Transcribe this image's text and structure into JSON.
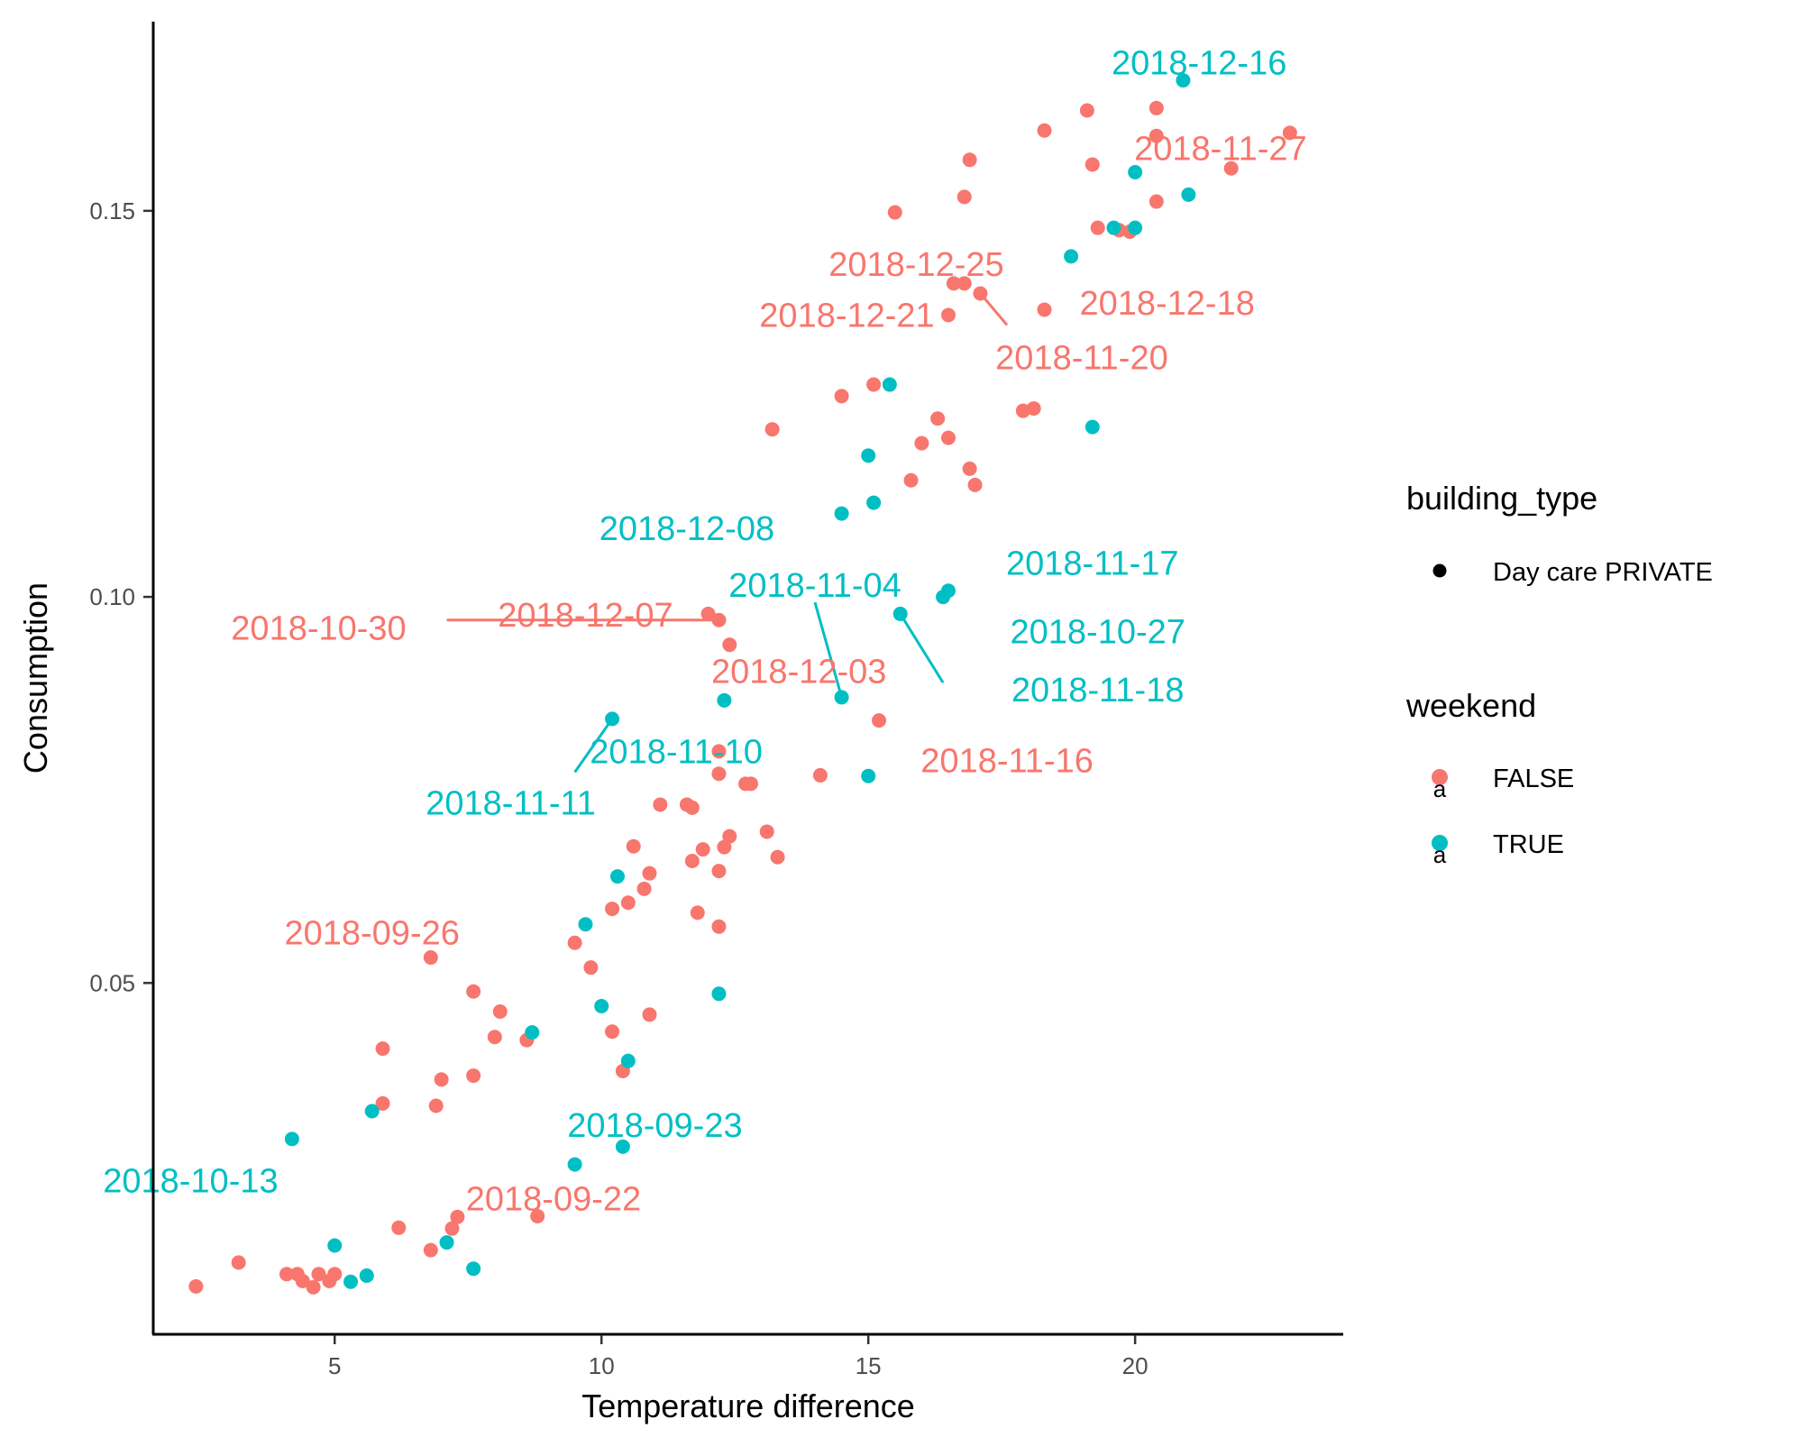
{
  "chart_data": {
    "type": "scatter",
    "title": "",
    "xlabel": "Temperature difference",
    "ylabel": "Consumption",
    "xlim": [
      1.6,
      23.9
    ],
    "ylim": [
      0.0045,
      0.1745
    ],
    "x_ticks": [
      5,
      10,
      15,
      20
    ],
    "y_ticks": [
      0.05,
      0.1,
      0.15
    ],
    "x_tick_labels": [
      "5",
      "10",
      "15",
      "20"
    ],
    "y_tick_labels": [
      "0.05",
      "0.10",
      "0.15"
    ],
    "grid": false,
    "legend_position": "right",
    "colors": {
      "FALSE": "#F8766D",
      "TRUE": "#00BFC4"
    },
    "legend": {
      "shape_title": "building_type",
      "shape_items": [
        "Day care PRIVATE"
      ],
      "color_title": "weekend",
      "color_items": [
        "FALSE",
        "TRUE"
      ],
      "key_glyph": "a"
    },
    "series": [
      {
        "weekend": "FALSE",
        "points": [
          [
            2.4,
            0.0107
          ],
          [
            3.2,
            0.0138
          ],
          [
            4.1,
            0.0123
          ],
          [
            4.3,
            0.0123
          ],
          [
            4.4,
            0.0114
          ],
          [
            4.6,
            0.0106
          ],
          [
            4.7,
            0.0123
          ],
          [
            4.9,
            0.0114
          ],
          [
            5.0,
            0.0123
          ],
          [
            6.2,
            0.0183
          ],
          [
            6.8,
            0.0154
          ],
          [
            7.2,
            0.0182
          ],
          [
            7.3,
            0.0197
          ],
          [
            8.8,
            0.0198
          ],
          [
            5.9,
            0.0415
          ],
          [
            5.9,
            0.0344
          ],
          [
            6.9,
            0.0341
          ],
          [
            7.0,
            0.0375
          ],
          [
            7.6,
            0.038
          ],
          [
            7.6,
            0.0489
          ],
          [
            8.0,
            0.043
          ],
          [
            8.1,
            0.0463
          ],
          [
            8.6,
            0.0426
          ],
          [
            6.8,
            0.0533
          ],
          [
            9.5,
            0.0552
          ],
          [
            9.8,
            0.052
          ],
          [
            10.2,
            0.0596
          ],
          [
            10.2,
            0.0437
          ],
          [
            10.4,
            0.0386
          ],
          [
            10.5,
            0.0604
          ],
          [
            10.6,
            0.0677
          ],
          [
            10.8,
            0.0622
          ],
          [
            10.9,
            0.0642
          ],
          [
            10.9,
            0.0459
          ],
          [
            11.1,
            0.0731
          ],
          [
            11.6,
            0.0731
          ],
          [
            11.7,
            0.0727
          ],
          [
            11.7,
            0.0658
          ],
          [
            11.8,
            0.0591
          ],
          [
            11.9,
            0.0673
          ],
          [
            12.2,
            0.0645
          ],
          [
            12.2,
            0.0573
          ],
          [
            12.2,
            0.0771
          ],
          [
            12.2,
            0.08
          ],
          [
            12.3,
            0.0676
          ],
          [
            12.4,
            0.069
          ],
          [
            12.0,
            0.0978
          ],
          [
            12.2,
            0.097
          ],
          [
            12.4,
            0.0938
          ],
          [
            12.7,
            0.0758
          ],
          [
            12.8,
            0.0758
          ],
          [
            13.1,
            0.0696
          ],
          [
            13.3,
            0.0663
          ],
          [
            14.1,
            0.0769
          ],
          [
            15.2,
            0.084
          ],
          [
            13.2,
            0.1217
          ],
          [
            14.5,
            0.126
          ],
          [
            15.1,
            0.1275
          ],
          [
            15.5,
            0.1498
          ],
          [
            15.8,
            0.1151
          ],
          [
            16.0,
            0.1199
          ],
          [
            16.3,
            0.1231
          ],
          [
            16.5,
            0.1206
          ],
          [
            16.5,
            0.1365
          ],
          [
            16.6,
            0.1406
          ],
          [
            16.8,
            0.1406
          ],
          [
            16.8,
            0.1518
          ],
          [
            16.9,
            0.1566
          ],
          [
            16.9,
            0.1166
          ],
          [
            17.0,
            0.1145
          ],
          [
            17.1,
            0.1393
          ],
          [
            17.9,
            0.1241
          ],
          [
            18.1,
            0.1244
          ],
          [
            18.3,
            0.1372
          ],
          [
            18.3,
            0.1604
          ],
          [
            19.1,
            0.163
          ],
          [
            19.2,
            0.156
          ],
          [
            19.3,
            0.1478
          ],
          [
            19.7,
            0.1475
          ],
          [
            19.9,
            0.1473
          ],
          [
            20.4,
            0.1512
          ],
          [
            20.4,
            0.1633
          ],
          [
            20.4,
            0.1597
          ],
          [
            21.8,
            0.1555
          ],
          [
            22.9,
            0.1601
          ]
        ]
      },
      {
        "weekend": "TRUE",
        "points": [
          [
            4.2,
            0.0298
          ],
          [
            5.0,
            0.016
          ],
          [
            5.3,
            0.0113
          ],
          [
            5.6,
            0.0121
          ],
          [
            5.7,
            0.0334
          ],
          [
            7.1,
            0.0164
          ],
          [
            7.6,
            0.013
          ],
          [
            8.7,
            0.0436
          ],
          [
            9.5,
            0.0265
          ],
          [
            9.7,
            0.0576
          ],
          [
            10.0,
            0.047
          ],
          [
            10.2,
            0.0842
          ],
          [
            10.3,
            0.0638
          ],
          [
            10.4,
            0.0288
          ],
          [
            10.5,
            0.0399
          ],
          [
            12.2,
            0.0486
          ],
          [
            12.3,
            0.0866
          ],
          [
            14.5,
            0.087
          ],
          [
            14.5,
            0.1108
          ],
          [
            15.0,
            0.0768
          ],
          [
            15.0,
            0.1183
          ],
          [
            15.1,
            0.1122
          ],
          [
            15.4,
            0.1275
          ],
          [
            15.6,
            0.0978
          ],
          [
            16.4,
            0.1
          ],
          [
            16.5,
            0.1008
          ],
          [
            18.8,
            0.1441
          ],
          [
            19.2,
            0.122
          ],
          [
            19.6,
            0.1478
          ],
          [
            20.0,
            0.155
          ],
          [
            20.0,
            0.1478
          ],
          [
            20.9,
            0.1669
          ],
          [
            21.0,
            0.1521
          ]
        ]
      }
    ],
    "annotations": [
      {
        "text": "2018-12-16",
        "weekend": "TRUE",
        "label_at": [
          21.2,
          0.1692
        ],
        "point": [
          20.9,
          0.1669
        ]
      },
      {
        "text": "2018-11-27",
        "weekend": "FALSE",
        "label_at": [
          21.6,
          0.1581
        ],
        "point": [
          22.9,
          0.1601
        ]
      },
      {
        "text": "2018-12-25",
        "weekend": "FALSE",
        "label_at": [
          15.9,
          0.1431
        ],
        "point": [
          16.8,
          0.1406
        ]
      },
      {
        "text": "2018-12-18",
        "weekend": "FALSE",
        "label_at": [
          20.6,
          0.1381
        ],
        "point": [
          18.3,
          0.1372
        ]
      },
      {
        "text": "2018-12-21",
        "weekend": "FALSE",
        "label_at": [
          14.6,
          0.1365
        ],
        "point": [
          16.5,
          0.1365
        ]
      },
      {
        "text": "2018-11-20",
        "weekend": "FALSE",
        "label_at": [
          19.0,
          0.131
        ],
        "point": [
          17.1,
          0.1393
        ],
        "segment_to": [
          17.6,
          0.1352
        ]
      },
      {
        "text": "2018-12-08",
        "weekend": "TRUE",
        "label_at": [
          11.6,
          0.1089
        ],
        "point": [
          14.5,
          0.1108
        ]
      },
      {
        "text": "2018-11-17",
        "weekend": "TRUE",
        "label_at": [
          19.2,
          0.1044
        ],
        "point": [
          16.5,
          0.1008
        ]
      },
      {
        "text": "2018-11-04",
        "weekend": "TRUE",
        "label_at": [
          14.0,
          0.1015
        ],
        "point": [
          14.5,
          0.087
        ],
        "segment_to": [
          14.0,
          0.0993
        ]
      },
      {
        "text": "2018-10-30",
        "weekend": "FALSE",
        "label_at": [
          4.7,
          0.096
        ],
        "point": [
          12.2,
          0.097
        ],
        "segment_to": [
          7.1,
          0.097
        ]
      },
      {
        "text": "2018-12-07",
        "weekend": "FALSE",
        "label_at": [
          9.7,
          0.0977
        ],
        "point": [
          12.0,
          0.0978
        ]
      },
      {
        "text": "2018-10-27",
        "weekend": "TRUE",
        "label_at": [
          19.3,
          0.0955
        ],
        "point": [
          16.4,
          0.1
        ]
      },
      {
        "text": "2018-12-03",
        "weekend": "FALSE",
        "label_at": [
          13.7,
          0.0904
        ],
        "point": [
          12.4,
          0.0938
        ]
      },
      {
        "text": "2018-11-18",
        "weekend": "TRUE",
        "label_at": [
          19.3,
          0.088
        ],
        "point": [
          15.6,
          0.0978
        ],
        "segment_to": [
          16.4,
          0.0889
        ]
      },
      {
        "text": "2018-11-10",
        "weekend": "TRUE",
        "label_at": [
          11.4,
          0.08
        ],
        "point": [
          10.2,
          0.0842
        ]
      },
      {
        "text": "2018-11-11",
        "weekend": "TRUE",
        "label_at": [
          8.3,
          0.0733
        ],
        "point": [
          10.2,
          0.0842
        ],
        "segment_to": [
          9.5,
          0.0773
        ]
      },
      {
        "text": "2018-11-16",
        "weekend": "FALSE",
        "label_at": [
          17.6,
          0.0788
        ],
        "point": [
          15.2,
          0.084
        ]
      },
      {
        "text": "2018-09-26",
        "weekend": "FALSE",
        "label_at": [
          5.7,
          0.0565
        ],
        "point": [
          6.8,
          0.0533
        ]
      },
      {
        "text": "2018-09-23",
        "weekend": "TRUE",
        "label_at": [
          11.0,
          0.0316
        ],
        "point": [
          10.4,
          0.0288
        ]
      },
      {
        "text": "2018-10-13",
        "weekend": "TRUE",
        "label_at": [
          2.3,
          0.0244
        ],
        "point": [
          4.2,
          0.0298
        ]
      },
      {
        "text": "2018-09-22",
        "weekend": "FALSE",
        "label_at": [
          9.1,
          0.0221
        ],
        "point": [
          8.8,
          0.0198
        ]
      }
    ]
  }
}
